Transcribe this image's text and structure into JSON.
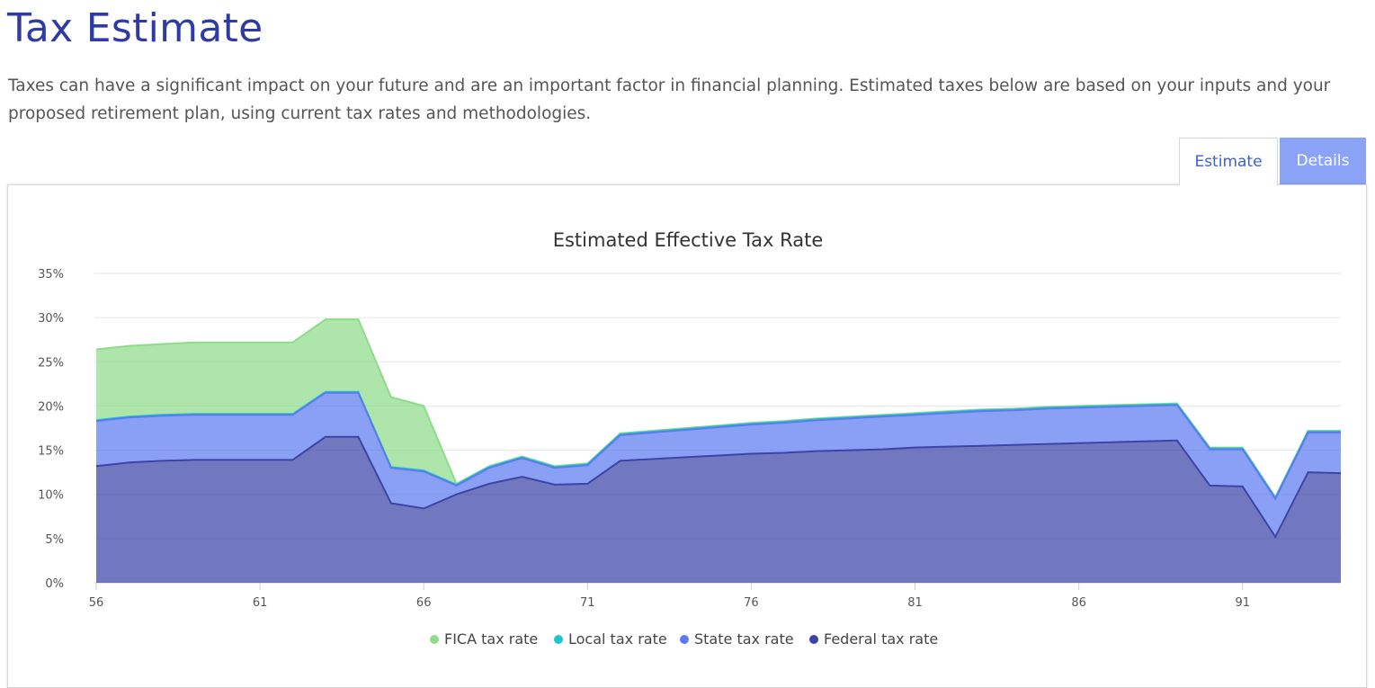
{
  "page": {
    "title": "Tax Estimate",
    "description": "Taxes can have a significant impact on your future and are an important factor in financial planning. Estimated taxes below are based on your inputs and your proposed retirement plan, using current tax rates and methodologies."
  },
  "tabs": [
    {
      "label": "Estimate",
      "active": true
    },
    {
      "label": "Details",
      "active": false
    }
  ],
  "chart_data": {
    "type": "area",
    "stacked": true,
    "title": "Estimated Effective Tax Rate",
    "xlabel": "",
    "ylabel": "",
    "ylim": [
      0,
      35
    ],
    "xlim": [
      56,
      94
    ],
    "yticks": [
      "0%",
      "5%",
      "10%",
      "15%",
      "20%",
      "25%",
      "30%",
      "35%"
    ],
    "xticks": [
      "56",
      "61",
      "66",
      "71",
      "76",
      "81",
      "86",
      "91"
    ],
    "grid": true,
    "legend_position": "bottom",
    "x": [
      56,
      57,
      58,
      59,
      60,
      61,
      62,
      63,
      64,
      65,
      66,
      67,
      68,
      69,
      70,
      71,
      72,
      73,
      74,
      75,
      76,
      77,
      78,
      79,
      80,
      81,
      82,
      83,
      84,
      85,
      86,
      87,
      88,
      89,
      90,
      91,
      92,
      93,
      94
    ],
    "series": [
      {
        "name": "Federal tax rate",
        "color": "#3b44a8",
        "values": [
          13.2,
          13.6,
          13.8,
          13.9,
          13.9,
          13.9,
          13.9,
          16.5,
          16.5,
          9.0,
          8.4,
          10.0,
          11.2,
          12.0,
          11.1,
          11.2,
          13.8,
          14.0,
          14.2,
          14.4,
          14.6,
          14.7,
          14.9,
          15.0,
          15.1,
          15.3,
          15.4,
          15.5,
          15.6,
          15.7,
          15.8,
          15.9,
          16.0,
          16.1,
          11.0,
          10.9,
          5.2,
          12.5,
          12.4
        ]
      },
      {
        "name": "State tax rate",
        "color": "#5b7cf0",
        "values": [
          5.1,
          5.1,
          5.1,
          5.1,
          5.1,
          5.1,
          5.1,
          5.0,
          5.0,
          4.0,
          4.2,
          1.0,
          1.8,
          2.1,
          1.9,
          2.1,
          2.9,
          3.0,
          3.1,
          3.2,
          3.3,
          3.4,
          3.5,
          3.6,
          3.7,
          3.7,
          3.8,
          3.9,
          3.9,
          4.0,
          4.0,
          4.0,
          4.0,
          4.0,
          4.1,
          4.2,
          4.3,
          4.5,
          4.6
        ]
      },
      {
        "name": "Local tax rate",
        "color": "#1fc2cf",
        "values": [
          0.1,
          0.1,
          0.1,
          0.1,
          0.1,
          0.1,
          0.1,
          0.1,
          0.1,
          0.1,
          0.1,
          0.1,
          0.1,
          0.1,
          0.1,
          0.1,
          0.1,
          0.1,
          0.1,
          0.1,
          0.1,
          0.1,
          0.1,
          0.1,
          0.1,
          0.1,
          0.1,
          0.1,
          0.1,
          0.1,
          0.1,
          0.1,
          0.1,
          0.1,
          0.1,
          0.1,
          0.1,
          0.1,
          0.1
        ]
      },
      {
        "name": "FICA tax rate",
        "color": "#8edb8a",
        "values": [
          8.0,
          8.0,
          8.0,
          8.1,
          8.1,
          8.1,
          8.1,
          8.2,
          8.2,
          7.9,
          7.3,
          0.1,
          0.1,
          0.1,
          0.1,
          0.1,
          0.1,
          0.1,
          0.1,
          0.1,
          0.1,
          0.1,
          0.1,
          0.1,
          0.1,
          0.1,
          0.1,
          0.1,
          0.1,
          0.1,
          0.1,
          0.1,
          0.1,
          0.1,
          0.1,
          0.1,
          0.1,
          0.1,
          0.1
        ]
      }
    ]
  }
}
